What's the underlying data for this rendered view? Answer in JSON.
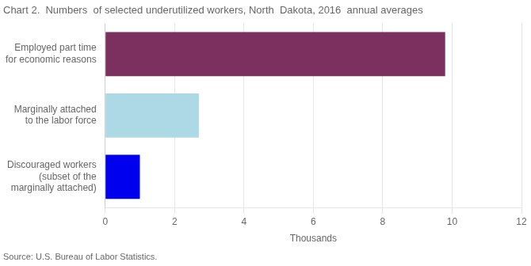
{
  "chart_data": {
    "type": "bar",
    "orientation": "horizontal",
    "title": "Chart 2.  Numbers  of selected underutilized workers, North  Dakota, 2016  annual averages",
    "categories": [
      "Discouraged workers\n(subset of the\nmarginally attached)",
      "Marginally attached\nto the labor force",
      "Employed part time\nfor economic reasons"
    ],
    "values": [
      1.0,
      2.7,
      9.8
    ],
    "colors": [
      "#0000ee",
      "#add8e6",
      "#7B3060"
    ],
    "xlim": [
      0,
      12
    ],
    "xticks": [
      0,
      2,
      4,
      6,
      8,
      10,
      12
    ],
    "xlabel": "Thousands",
    "annotations": [
      "Source: U.S. Bureau of Labor Statistics."
    ],
    "grid": true
  }
}
